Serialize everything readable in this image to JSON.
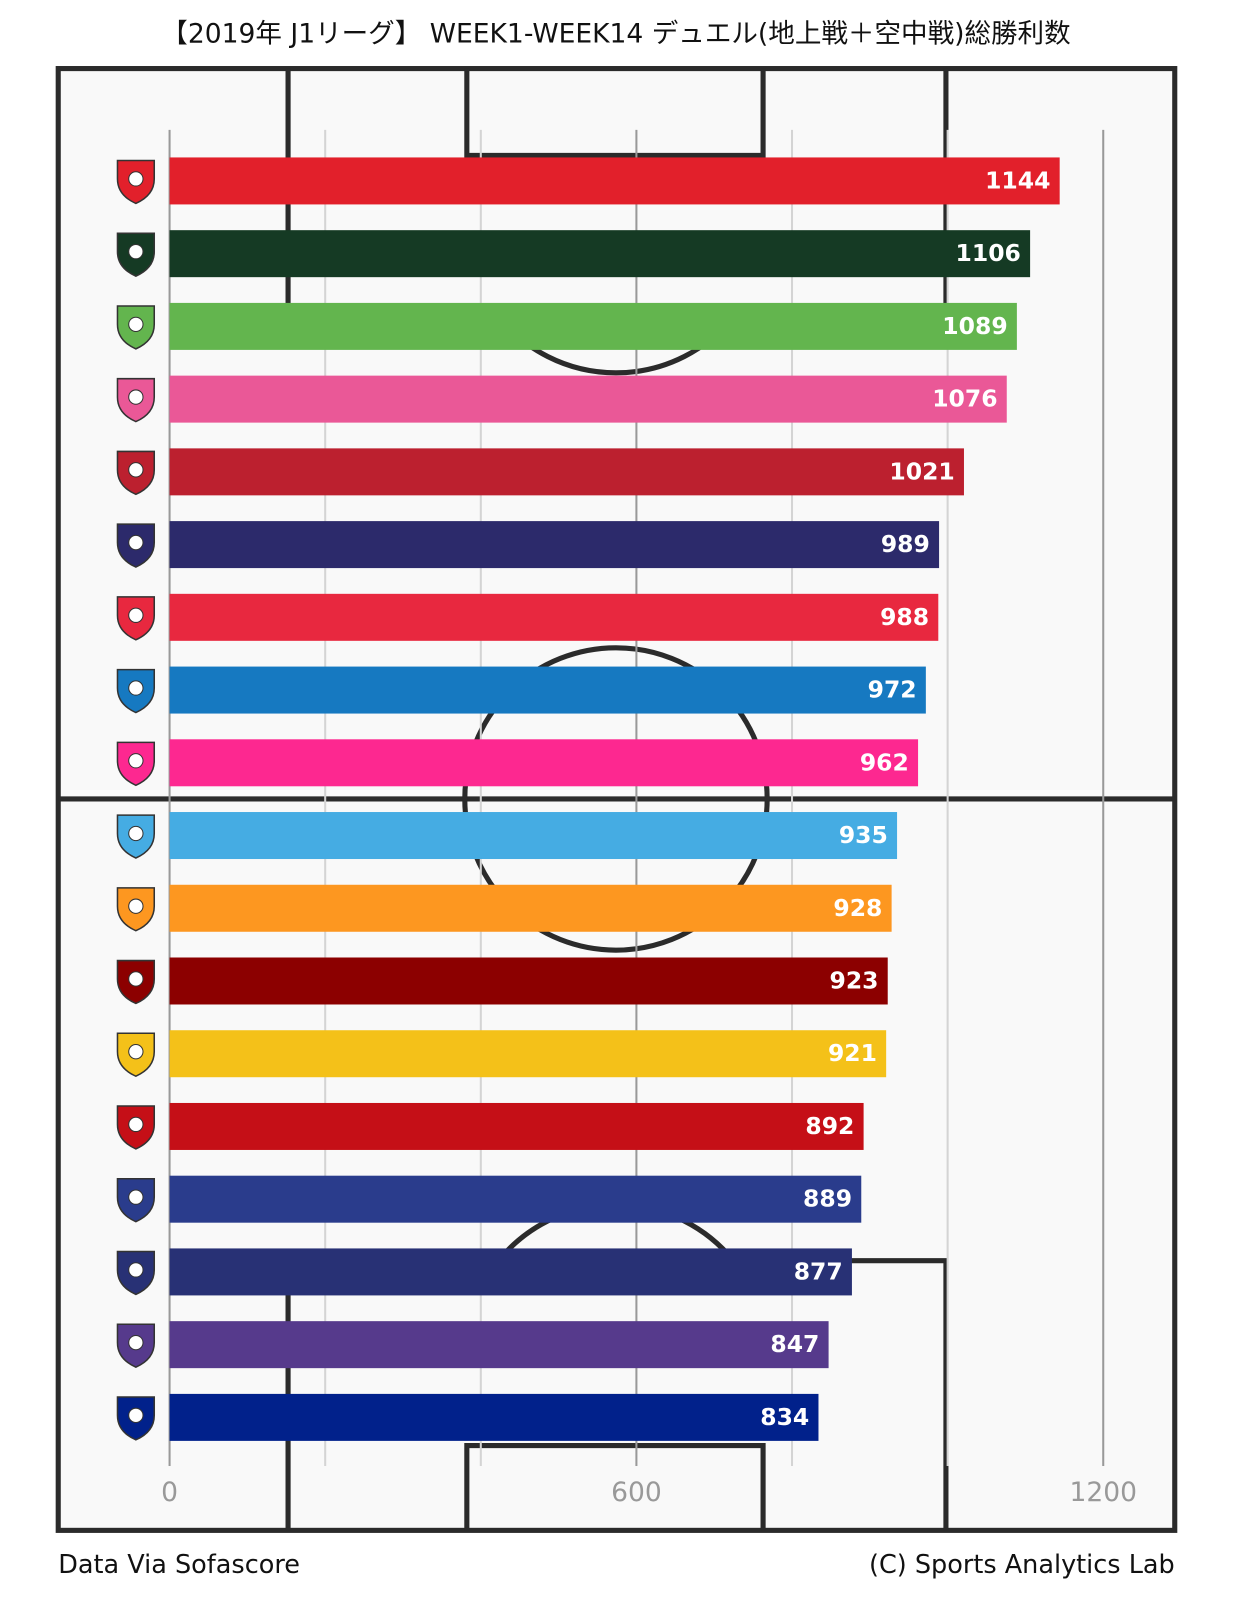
{
  "chart_data": {
    "type": "barh",
    "title": "【2019年 J1リーグ】 WEEK1-WEEK14 デュエル(地上戦＋空中戦)総勝利数",
    "categories": [
      null,
      null,
      null,
      null,
      null,
      null,
      null,
      null,
      null,
      null,
      null,
      null,
      null,
      null,
      null,
      null,
      null,
      null
    ],
    "values": [
      1144,
      1106,
      1089,
      1076,
      1021,
      989,
      988,
      972,
      962,
      935,
      928,
      923,
      921,
      892,
      889,
      877,
      847,
      834
    ],
    "colors": [
      "#e2202b",
      "#153a24",
      "#63b54e",
      "#ea5897",
      "#bc202f",
      "#2c2a6b",
      "#e8283f",
      "#1679c1",
      "#fd2890",
      "#45ace3",
      "#fd9720",
      "#8c0000",
      "#f4c119",
      "#c50f17",
      "#2a3c8c",
      "#283175",
      "#563a8c",
      "#01218b"
    ],
    "xlim": [
      0,
      1200
    ],
    "xticks": [
      0,
      600,
      1200
    ],
    "xminorticks": [
      200,
      400,
      800,
      1000
    ],
    "grid": true,
    "source": "Data Via Sofascore",
    "credit": "(C) Sports Analytics Lab"
  }
}
